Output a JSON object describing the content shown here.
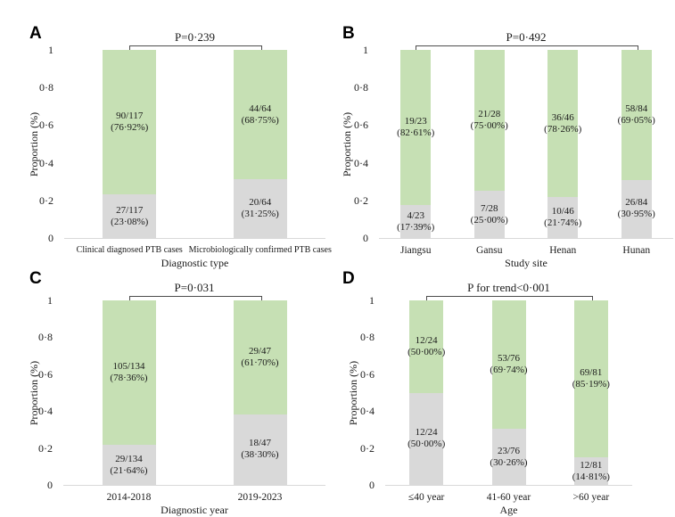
{
  "colors": {
    "green": "#c6e0b4",
    "gray": "#d9d9d9",
    "axis_line": "#d9d9d9",
    "bracket": "#4d4d4d",
    "text": "#1a1a1a",
    "background": "#ffffff"
  },
  "y_axis": {
    "label": "Proportion (%)",
    "range": [
      0,
      1
    ],
    "ticks": [
      {
        "label": "0",
        "value": 0
      },
      {
        "label": "0·2",
        "value": 0.2
      },
      {
        "label": "0·4",
        "value": 0.4
      },
      {
        "label": "0·6",
        "value": 0.6
      },
      {
        "label": "0·8",
        "value": 0.8
      },
      {
        "label": "1",
        "value": 1
      }
    ]
  },
  "chart_data": [
    {
      "panel": "A",
      "type": "bar",
      "variant": "stacked-proportion",
      "p_label": "P=0·239",
      "xlabel": "Diagnostic type",
      "ylabel": "Proportion (%)",
      "ylim": [
        0,
        1
      ],
      "grid": false,
      "legend": null,
      "categories": [
        "Clinical diagnosed PTB cases",
        "Microbiologically confirmed PTB cases"
      ],
      "bars": [
        {
          "category": "Clinical diagnosed PTB cases",
          "segments": [
            {
              "color": "gray",
              "fraction": 0.2308,
              "count": "27/117",
              "percent": "(23·08%)"
            },
            {
              "color": "green",
              "fraction": 0.7692,
              "count": "90/117",
              "percent": "(76·92%)"
            }
          ]
        },
        {
          "category": "Microbiologically confirmed PTB cases",
          "segments": [
            {
              "color": "gray",
              "fraction": 0.3125,
              "count": "20/64",
              "percent": "(31·25%)"
            },
            {
              "color": "green",
              "fraction": 0.6875,
              "count": "44/64",
              "percent": "(68·75%)"
            }
          ]
        }
      ]
    },
    {
      "panel": "B",
      "type": "bar",
      "variant": "stacked-proportion",
      "p_label": "P=0·492",
      "xlabel": "Study site",
      "ylabel": "Proportion (%)",
      "ylim": [
        0,
        1
      ],
      "grid": false,
      "legend": null,
      "categories": [
        "Jiangsu",
        "Gansu",
        "Henan",
        "Hunan"
      ],
      "bars": [
        {
          "category": "Jiangsu",
          "segments": [
            {
              "color": "gray",
              "fraction": 0.1739,
              "count": "4/23",
              "percent": "(17·39%)"
            },
            {
              "color": "green",
              "fraction": 0.8261,
              "count": "19/23",
              "percent": "(82·61%)"
            }
          ]
        },
        {
          "category": "Gansu",
          "segments": [
            {
              "color": "gray",
              "fraction": 0.25,
              "count": "7/28",
              "percent": "(25·00%)"
            },
            {
              "color": "green",
              "fraction": 0.75,
              "count": "21/28",
              "percent": "(75·00%)"
            }
          ]
        },
        {
          "category": "Henan",
          "segments": [
            {
              "color": "gray",
              "fraction": 0.2174,
              "count": "10/46",
              "percent": "(21·74%)"
            },
            {
              "color": "green",
              "fraction": 0.7826,
              "count": "36/46",
              "percent": "(78·26%)"
            }
          ]
        },
        {
          "category": "Hunan",
          "segments": [
            {
              "color": "gray",
              "fraction": 0.3095,
              "count": "26/84",
              "percent": "(30·95%)"
            },
            {
              "color": "green",
              "fraction": 0.6905,
              "count": "58/84",
              "percent": "(69·05%)"
            }
          ]
        }
      ]
    },
    {
      "panel": "C",
      "type": "bar",
      "variant": "stacked-proportion",
      "p_label": "P=0·031",
      "xlabel": "Diagnostic year",
      "ylabel": "Proportion (%)",
      "ylim": [
        0,
        1
      ],
      "grid": false,
      "legend": null,
      "categories": [
        "2014-2018",
        "2019-2023"
      ],
      "bars": [
        {
          "category": "2014-2018",
          "segments": [
            {
              "color": "gray",
              "fraction": 0.2164,
              "count": "29/134",
              "percent": "(21·64%)"
            },
            {
              "color": "green",
              "fraction": 0.7836,
              "count": "105/134",
              "percent": "(78·36%)"
            }
          ]
        },
        {
          "category": "2019-2023",
          "segments": [
            {
              "color": "gray",
              "fraction": 0.383,
              "count": "18/47",
              "percent": "(38·30%)"
            },
            {
              "color": "green",
              "fraction": 0.617,
              "count": "29/47",
              "percent": "(61·70%)"
            }
          ]
        }
      ]
    },
    {
      "panel": "D",
      "type": "bar",
      "variant": "stacked-proportion",
      "p_label": "P for trend<0·001",
      "xlabel": "Age",
      "ylabel": "Proportion (%)",
      "ylim": [
        0,
        1
      ],
      "grid": false,
      "legend": null,
      "categories": [
        "≤40 year",
        "41-60 year",
        ">60 year"
      ],
      "bars": [
        {
          "category": "≤40 year",
          "segments": [
            {
              "color": "gray",
              "fraction": 0.5,
              "count": "12/24",
              "percent": "(50·00%)"
            },
            {
              "color": "green",
              "fraction": 0.5,
              "count": "12/24",
              "percent": "(50·00%)"
            }
          ]
        },
        {
          "category": "41-60 year",
          "segments": [
            {
              "color": "gray",
              "fraction": 0.3026,
              "count": "23/76",
              "percent": "(30·26%)"
            },
            {
              "color": "green",
              "fraction": 0.6974,
              "count": "53/76",
              "percent": "(69·74%)"
            }
          ]
        },
        {
          "category": ">60 year",
          "segments": [
            {
              "color": "gray",
              "fraction": 0.1481,
              "count": "12/81",
              "percent": "(14·81%)"
            },
            {
              "color": "green",
              "fraction": 0.8519,
              "count": "69/81",
              "percent": "(85·19%)"
            }
          ]
        }
      ]
    }
  ]
}
